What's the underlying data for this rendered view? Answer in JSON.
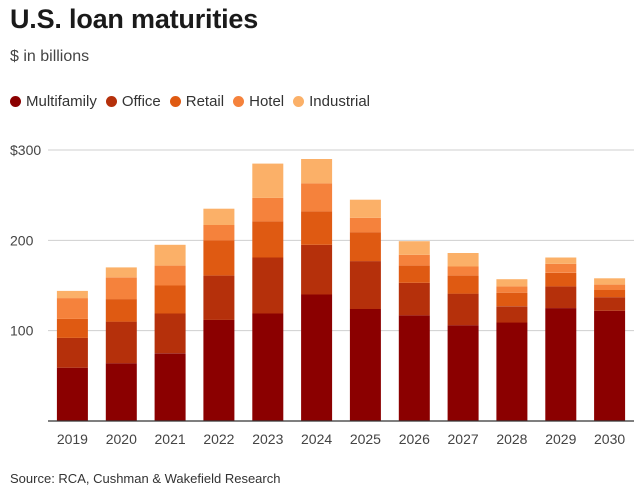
{
  "header": {
    "title": "U.S. loan maturities",
    "subtitle": "$ in billions"
  },
  "footer": {
    "source": "Source: RCA, Cushman & Wakefield Research"
  },
  "y_tick_labels": [
    "$300",
    "200",
    "100"
  ],
  "chart_data": {
    "type": "bar",
    "stacked": true,
    "title": "U.S. loan maturities",
    "subtitle": "$ in billions",
    "xlabel": "",
    "ylabel": "",
    "ylim": [
      0,
      300
    ],
    "yticks": [
      100,
      200,
      300
    ],
    "grid": true,
    "legend_position": "top-left",
    "categories": [
      "2019",
      "2020",
      "2021",
      "2022",
      "2023",
      "2024",
      "2025",
      "2026",
      "2027",
      "2028",
      "2029",
      "2030"
    ],
    "series": [
      {
        "name": "Multifamily",
        "color": "#8b0000",
        "values": [
          59,
          64,
          75,
          112,
          119,
          140,
          124,
          117,
          106,
          109,
          125,
          122
        ]
      },
      {
        "name": "Office",
        "color": "#b5300b",
        "values": [
          33,
          46,
          44,
          49,
          62,
          55,
          53,
          36,
          35,
          18,
          24,
          15
        ]
      },
      {
        "name": "Retail",
        "color": "#df5a12",
        "values": [
          21,
          25,
          31,
          39,
          40,
          37,
          32,
          19,
          20,
          15,
          15,
          8
        ]
      },
      {
        "name": "Hotel",
        "color": "#f5823c",
        "values": [
          23,
          24,
          22,
          17,
          26,
          31,
          16,
          12,
          10,
          7,
          10,
          6
        ]
      },
      {
        "name": "Industrial",
        "color": "#fbb068",
        "values": [
          8,
          11,
          23,
          18,
          38,
          27,
          20,
          15,
          15,
          8,
          7,
          7
        ]
      }
    ]
  }
}
